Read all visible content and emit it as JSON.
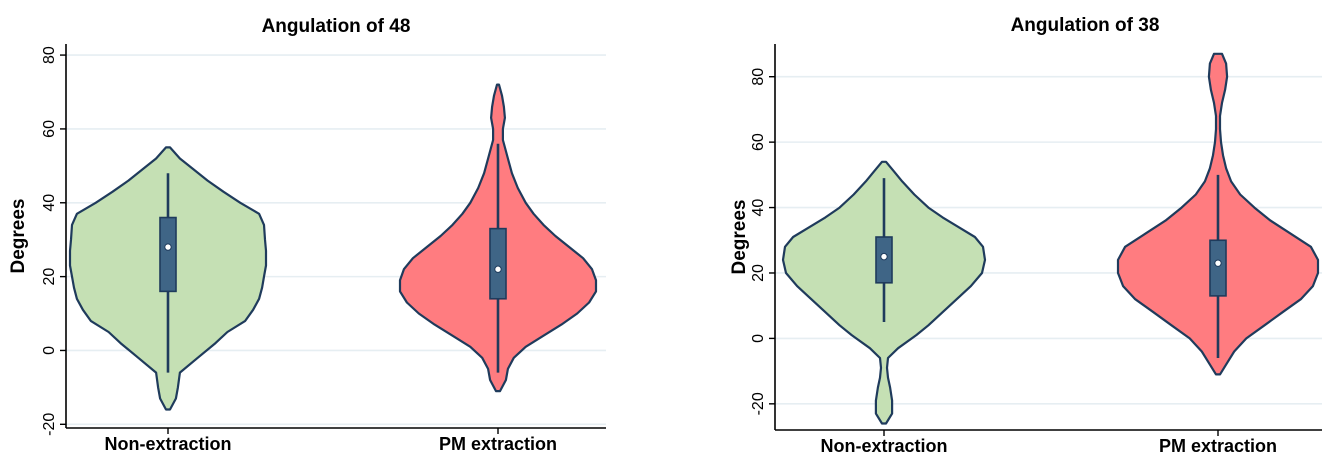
{
  "colors": {
    "non_extraction_fill": "#c5e0b4",
    "pm_extraction_fill": "#ff7c80",
    "outline": "#1f3b5c",
    "box": "#3f6586",
    "grid": "#e6eef2"
  },
  "chart_data": [
    {
      "type": "violin",
      "title": "Angulation of 48",
      "xlabel": "",
      "ylabel": "Degrees",
      "ylim": [
        -21,
        83
      ],
      "yticks": [
        -20,
        0,
        20,
        40,
        60,
        80
      ],
      "ytick_labels": [
        "-20",
        "0",
        "20",
        "40",
        "60",
        "80"
      ],
      "grid": true,
      "categories": [
        "Non-extraction",
        "PM extraction"
      ],
      "series": [
        {
          "category": "Non-extraction",
          "min": -16,
          "max": 55,
          "whisker_low": -6,
          "whisker_high": 48,
          "q1": 16,
          "median": 28,
          "q3": 36,
          "density": [
            [
              -16,
              0.02
            ],
            [
              -13,
              0.08
            ],
            [
              -10,
              0.1
            ],
            [
              -6,
              0.12
            ],
            [
              -2,
              0.3
            ],
            [
              2,
              0.48
            ],
            [
              5,
              0.6
            ],
            [
              8,
              0.78
            ],
            [
              11,
              0.86
            ],
            [
              14,
              0.92
            ],
            [
              17,
              0.95
            ],
            [
              20,
              0.97
            ],
            [
              23,
              0.99
            ],
            [
              27,
              0.99
            ],
            [
              30,
              0.98
            ],
            [
              34,
              0.97
            ],
            [
              37,
              0.92
            ],
            [
              40,
              0.73
            ],
            [
              43,
              0.56
            ],
            [
              46,
              0.4
            ],
            [
              49,
              0.26
            ],
            [
              52,
              0.12
            ],
            [
              55,
              0.02
            ]
          ]
        },
        {
          "category": "PM extraction",
          "min": -11,
          "max": 72,
          "whisker_low": -6,
          "whisker_high": 56,
          "q1": 14,
          "median": 22,
          "q3": 33,
          "density": [
            [
              -11,
              0.02
            ],
            [
              -8,
              0.08
            ],
            [
              -5,
              0.1
            ],
            [
              -2,
              0.16
            ],
            [
              1,
              0.28
            ],
            [
              4,
              0.46
            ],
            [
              7,
              0.64
            ],
            [
              10,
              0.8
            ],
            [
              13,
              0.92
            ],
            [
              16,
              0.99
            ],
            [
              19,
              0.99
            ],
            [
              22,
              0.95
            ],
            [
              25,
              0.86
            ],
            [
              28,
              0.72
            ],
            [
              31,
              0.58
            ],
            [
              34,
              0.46
            ],
            [
              37,
              0.36
            ],
            [
              40,
              0.28
            ],
            [
              44,
              0.2
            ],
            [
              48,
              0.14
            ],
            [
              52,
              0.1
            ],
            [
              55,
              0.07
            ],
            [
              57,
              0.05
            ],
            [
              60,
              0.05
            ],
            [
              63,
              0.07
            ],
            [
              66,
              0.06
            ],
            [
              69,
              0.04
            ],
            [
              72,
              0.01
            ]
          ]
        }
      ]
    },
    {
      "type": "violin",
      "title": "Angulation of 38",
      "xlabel": "",
      "ylabel": "Degrees",
      "ylim": [
        -28,
        90
      ],
      "yticks": [
        -20,
        0,
        20,
        40,
        60,
        80
      ],
      "ytick_labels": [
        "-20",
        "0",
        "20",
        "40",
        "60",
        "80"
      ],
      "grid": true,
      "categories": [
        "Non-extraction",
        "PM extraction"
      ],
      "series": [
        {
          "category": "Non-extraction",
          "min": -26,
          "max": 54,
          "whisker_low": 5,
          "whisker_high": 49,
          "q1": 17,
          "median": 25,
          "q3": 31,
          "density": [
            [
              -26,
              0.02
            ],
            [
              -23,
              0.08
            ],
            [
              -19,
              0.08
            ],
            [
              -15,
              0.06
            ],
            [
              -12,
              0.04
            ],
            [
              -9,
              0.03
            ],
            [
              -6,
              0.04
            ],
            [
              -3,
              0.14
            ],
            [
              1,
              0.32
            ],
            [
              4,
              0.44
            ],
            [
              8,
              0.58
            ],
            [
              12,
              0.72
            ],
            [
              16,
              0.86
            ],
            [
              20,
              0.97
            ],
            [
              24,
              1.0
            ],
            [
              28,
              0.98
            ],
            [
              31,
              0.9
            ],
            [
              34,
              0.74
            ],
            [
              37,
              0.58
            ],
            [
              40,
              0.44
            ],
            [
              44,
              0.3
            ],
            [
              48,
              0.18
            ],
            [
              51,
              0.1
            ],
            [
              54,
              0.02
            ]
          ]
        },
        {
          "category": "PM extraction",
          "min": -11,
          "max": 87,
          "whisker_low": -6,
          "whisker_high": 50,
          "q1": 13,
          "median": 23,
          "q3": 30,
          "density": [
            [
              -11,
              0.02
            ],
            [
              -8,
              0.08
            ],
            [
              -4,
              0.16
            ],
            [
              0,
              0.28
            ],
            [
              4,
              0.46
            ],
            [
              8,
              0.64
            ],
            [
              12,
              0.82
            ],
            [
              16,
              0.94
            ],
            [
              20,
              0.99
            ],
            [
              24,
              0.99
            ],
            [
              28,
              0.92
            ],
            [
              32,
              0.72
            ],
            [
              36,
              0.52
            ],
            [
              40,
              0.36
            ],
            [
              44,
              0.22
            ],
            [
              48,
              0.13
            ],
            [
              52,
              0.08
            ],
            [
              56,
              0.05
            ],
            [
              60,
              0.03
            ],
            [
              64,
              0.02
            ],
            [
              68,
              0.02
            ],
            [
              72,
              0.04
            ],
            [
              76,
              0.07
            ],
            [
              80,
              0.09
            ],
            [
              84,
              0.08
            ],
            [
              87,
              0.04
            ]
          ]
        }
      ]
    }
  ]
}
